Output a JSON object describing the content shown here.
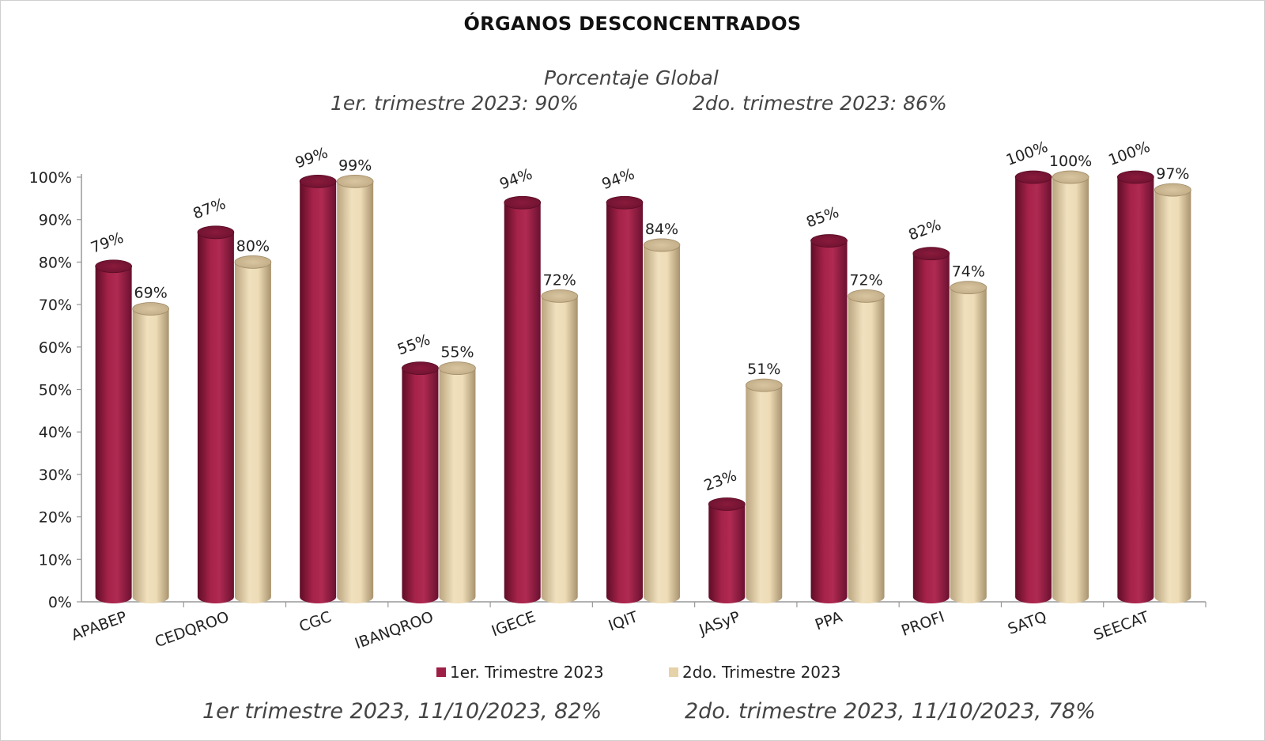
{
  "chart_data": {
    "type": "bar",
    "title": "ÓRGANOS DESCONCENTRADOS",
    "subtitle": "Porcentaje Global",
    "summary": [
      "1er. trimestre 2023: 90%",
      "2do. trimestre 2023: 86%"
    ],
    "categories": [
      "APABEP",
      "CEDQROO",
      "CGC",
      "IBANQROO",
      "IGECE",
      "IQIT",
      "JASyP",
      "PPA",
      "PROFI",
      "SATQ",
      "SEECAT"
    ],
    "series": [
      {
        "name": "1er. Trimestre 2023",
        "color": "#9e1f45",
        "values": [
          79,
          87,
          99,
          55,
          94,
          94,
          23,
          85,
          82,
          100,
          100
        ],
        "labels": [
          "79%",
          "87%",
          "99%",
          "55%",
          "94%",
          "94%",
          "23%",
          "85%",
          "82%",
          "100%",
          "100%"
        ]
      },
      {
        "name": "2do. Trimestre 2023",
        "color": "#e6d2a8",
        "values": [
          69,
          80,
          99,
          55,
          72,
          84,
          51,
          72,
          74,
          100,
          97
        ],
        "labels": [
          "69%",
          "80%",
          "99%",
          "55%",
          "72%",
          "84%",
          "51%",
          "72%",
          "74%",
          "100%",
          "97%"
        ]
      }
    ],
    "yticks": [
      "0%",
      "10%",
      "20%",
      "30%",
      "40%",
      "50%",
      "60%",
      "70%",
      "80%",
      "90%",
      "100%"
    ],
    "ylim": [
      0,
      100
    ],
    "legend_position": "bottom",
    "footer": [
      "1er trimestre  2023,  11/10/2023, 82%",
      "2do. trimestre 2023, 11/10/2023, 78%"
    ]
  }
}
